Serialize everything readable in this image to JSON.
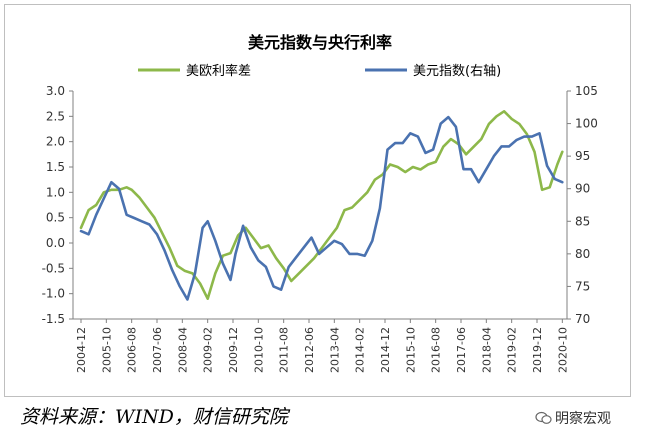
{
  "chart_data": {
    "type": "line",
    "title": "美元指数与央行利率",
    "x_tick_labels": [
      "2004-12",
      "2005-10",
      "2006-08",
      "2007-06",
      "2008-04",
      "2009-02",
      "2009-12",
      "2010-10",
      "2011-08",
      "2012-06",
      "2013-04",
      "2014-02",
      "2014-12",
      "2015-10",
      "2016-08",
      "2017-06",
      "2018-04",
      "2019-02",
      "2019-12",
      "2020-10"
    ],
    "y_left": {
      "ticks": [
        "3.0",
        "2.5",
        "2.0",
        "1.5",
        "1.0",
        "0.5",
        "0.0",
        "-0.5",
        "-1.0",
        "-1.5"
      ],
      "lim": [
        -1.5,
        3.0
      ]
    },
    "y_right": {
      "ticks": [
        "105",
        "100",
        "95",
        "90",
        "85",
        "80",
        "75",
        "70"
      ],
      "lim": [
        70,
        105
      ]
    },
    "series": [
      {
        "name": "美欧利率差",
        "axis": "left",
        "color": "#8db84a",
        "x": [
          0,
          0.3,
          0.6,
          0.9,
          1.2,
          1.5,
          1.8,
          2.0,
          2.3,
          2.6,
          2.9,
          3.2,
          3.5,
          3.8,
          4.1,
          4.4,
          4.7,
          5.0,
          5.3,
          5.6,
          5.9,
          6.2,
          6.5,
          6.8,
          7.1,
          7.4,
          7.7,
          8.0,
          8.3,
          8.6,
          8.9,
          9.2,
          9.5,
          9.8,
          10.1,
          10.4,
          10.7,
          11.0,
          11.3,
          11.6,
          11.9,
          12.2,
          12.5,
          12.8,
          13.1,
          13.4,
          13.7,
          14.0,
          14.3,
          14.6,
          14.9,
          15.2,
          15.5,
          15.8,
          16.1,
          16.4,
          16.7,
          17.0,
          17.3,
          17.6,
          17.9,
          18.2,
          18.5,
          18.8,
          19.0
        ],
        "y": [
          0.3,
          0.65,
          0.75,
          1.0,
          1.05,
          1.05,
          1.1,
          1.05,
          0.9,
          0.7,
          0.5,
          0.2,
          -0.1,
          -0.45,
          -0.55,
          -0.6,
          -0.8,
          -1.1,
          -0.6,
          -0.25,
          -0.2,
          0.15,
          0.3,
          0.1,
          -0.1,
          -0.05,
          -0.3,
          -0.5,
          -0.75,
          -0.6,
          -0.45,
          -0.3,
          -0.1,
          0.1,
          0.3,
          0.65,
          0.7,
          0.85,
          1.0,
          1.25,
          1.35,
          1.55,
          1.5,
          1.4,
          1.5,
          1.45,
          1.55,
          1.6,
          1.9,
          2.05,
          1.95,
          1.75,
          1.9,
          2.05,
          2.35,
          2.5,
          2.6,
          2.45,
          2.35,
          2.15,
          1.8,
          1.05,
          1.1,
          1.55,
          1.8
        ]
      },
      {
        "name": "美元指数(右轴)",
        "axis": "right",
        "color": "#4a72b0",
        "x": [
          0,
          0.3,
          0.6,
          0.9,
          1.2,
          1.5,
          1.8,
          2.1,
          2.4,
          2.7,
          3.0,
          3.3,
          3.6,
          3.9,
          4.2,
          4.5,
          4.8,
          5.0,
          5.3,
          5.6,
          5.9,
          6.1,
          6.4,
          6.7,
          7.0,
          7.3,
          7.6,
          7.9,
          8.2,
          8.5,
          8.8,
          9.1,
          9.4,
          9.7,
          10.0,
          10.3,
          10.6,
          10.9,
          11.2,
          11.5,
          11.8,
          12.1,
          12.4,
          12.7,
          13.0,
          13.3,
          13.6,
          13.9,
          14.2,
          14.5,
          14.8,
          15.1,
          15.4,
          15.7,
          16.0,
          16.3,
          16.6,
          16.9,
          17.2,
          17.5,
          17.8,
          18.1,
          18.4,
          18.7,
          19.0
        ],
        "y": [
          83.5,
          83,
          86,
          88.5,
          91,
          90,
          86,
          85.5,
          85,
          84.5,
          83,
          80.5,
          77.5,
          75,
          73,
          77,
          84,
          85,
          82,
          78.5,
          76,
          80,
          84.3,
          81,
          79,
          78,
          75,
          74.5,
          78,
          79.5,
          81,
          82.5,
          80,
          81,
          82,
          81.5,
          80,
          80,
          79.7,
          82,
          87,
          96,
          97,
          97,
          98.5,
          98,
          95.5,
          96,
          100,
          101,
          99.5,
          93,
          93,
          91,
          93,
          95,
          96.5,
          96.5,
          97.5,
          98,
          98,
          98.5,
          93.5,
          91.5,
          91
        ]
      }
    ]
  },
  "source_text": "资料来源：WIND，财信研究院",
  "watermark": {
    "text": "明察宏观",
    "icon": "wechat-icon"
  }
}
